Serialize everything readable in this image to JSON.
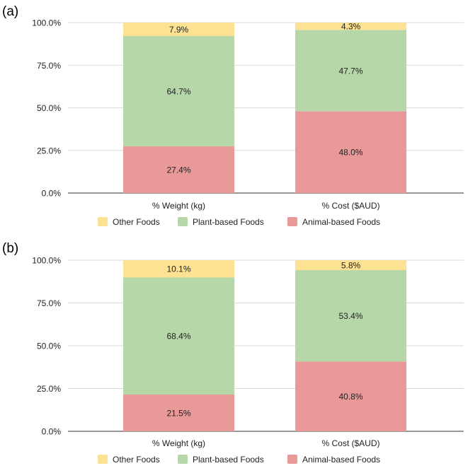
{
  "colors": {
    "other": "#fde293",
    "plant": "#b6d7a8",
    "animal": "#ea9999",
    "grid": "#d9d9d9",
    "axis": "#333333",
    "text": "#222222"
  },
  "legend": [
    {
      "name": "Other Foods",
      "color": "#fde293"
    },
    {
      "name": "Plant-based Foods",
      "color": "#b6d7a8"
    },
    {
      "name": "Animal-based Foods",
      "color": "#ea9999"
    }
  ],
  "chart_data": [
    {
      "type": "bar",
      "stacked": true,
      "panel_label": "(a)",
      "categories": [
        "% Weight (kg)",
        "% Cost ($AUD)"
      ],
      "yticks": [
        "0.0%",
        "25.0%",
        "50.0%",
        "75.0%",
        "100.0%"
      ],
      "ylim": [
        0,
        100
      ],
      "legend_position": "bottom",
      "series": [
        {
          "name": "Animal-based Foods",
          "color": "#ea9999",
          "values": [
            27.4,
            48.0
          ],
          "labels": [
            "27.4%",
            "48.0%"
          ]
        },
        {
          "name": "Plant-based Foods",
          "color": "#b6d7a8",
          "values": [
            64.7,
            47.7
          ],
          "labels": [
            "64.7%",
            "47.7%"
          ]
        },
        {
          "name": "Other Foods",
          "color": "#fde293",
          "values": [
            7.9,
            4.3
          ],
          "labels": [
            "7.9%",
            "4.3%"
          ]
        }
      ]
    },
    {
      "type": "bar",
      "stacked": true,
      "panel_label": "(b)",
      "categories": [
        "% Weight (kg)",
        "% Cost ($AUD)"
      ],
      "yticks": [
        "0.0%",
        "25.0%",
        "50.0%",
        "75.0%",
        "100.0%"
      ],
      "ylim": [
        0,
        100
      ],
      "legend_position": "bottom",
      "series": [
        {
          "name": "Animal-based Foods",
          "color": "#ea9999",
          "values": [
            21.5,
            40.8
          ],
          "labels": [
            "21.5%",
            "40.8%"
          ]
        },
        {
          "name": "Plant-based Foods",
          "color": "#b6d7a8",
          "values": [
            68.4,
            53.4
          ],
          "labels": [
            "68.4%",
            "53.4%"
          ]
        },
        {
          "name": "Other Foods",
          "color": "#fde293",
          "values": [
            10.1,
            5.8
          ],
          "labels": [
            "10.1%",
            "5.8%"
          ]
        }
      ]
    }
  ]
}
